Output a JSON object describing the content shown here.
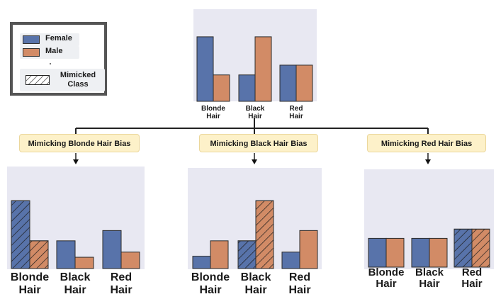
{
  "legend": {
    "female_label": "Female",
    "male_label": "Male",
    "mimicked_label_line1": "Mimicked",
    "mimicked_label_line2": "Class"
  },
  "colors": {
    "female": "#5873aa",
    "male": "#d28b66",
    "panel_bg": "#e8e8f2",
    "label_bg": "#fdf1c9"
  },
  "bias_labels": [
    "Mimicking Blonde Hair Bias",
    "Mimicking Black Hair Bias",
    "Mimicking Red Hair Bias"
  ],
  "chart_data": [
    {
      "type": "bar",
      "panel": "original",
      "categories": [
        [
          "Blonde",
          "Hair"
        ],
        [
          "Black",
          "Hair"
        ],
        [
          "Red",
          "Hair"
        ]
      ],
      "series": [
        {
          "name": "Female",
          "values": [
            0.66,
            0.27,
            0.37
          ]
        },
        {
          "name": "Male",
          "values": [
            0.27,
            0.66,
            0.37
          ]
        }
      ],
      "mimicked": [],
      "ylim": [
        0,
        1
      ]
    },
    {
      "type": "bar",
      "panel": "mimicking-blonde",
      "categories": [
        [
          "Blonde",
          "Hair"
        ],
        [
          "Black",
          "Hair"
        ],
        [
          "Red",
          "Hair"
        ]
      ],
      "series": [
        {
          "name": "Female",
          "values": [
            0.66,
            0.27,
            0.37
          ]
        },
        {
          "name": "Male",
          "values": [
            0.27,
            0.11,
            0.16
          ]
        }
      ],
      "mimicked": [
        0
      ],
      "ylim": [
        0,
        1
      ]
    },
    {
      "type": "bar",
      "panel": "mimicking-black",
      "categories": [
        [
          "Blonde",
          "Hair"
        ],
        [
          "Black",
          "Hair"
        ],
        [
          "Red",
          "Hair"
        ]
      ],
      "series": [
        {
          "name": "Female",
          "values": [
            0.12,
            0.27,
            0.16
          ]
        },
        {
          "name": "Male",
          "values": [
            0.27,
            0.66,
            0.37
          ]
        }
      ],
      "mimicked": [
        1
      ],
      "ylim": [
        0,
        1
      ]
    },
    {
      "type": "bar",
      "panel": "mimicking-red",
      "categories": [
        [
          "Blonde",
          "Hair"
        ],
        [
          "Black",
          "Hair"
        ],
        [
          "Red",
          "Hair"
        ]
      ],
      "series": [
        {
          "name": "Female",
          "values": [
            0.28,
            0.28,
            0.37
          ]
        },
        {
          "name": "Male",
          "values": [
            0.28,
            0.28,
            0.37
          ]
        }
      ],
      "mimicked": [
        2
      ],
      "ylim": [
        0,
        1
      ]
    }
  ]
}
